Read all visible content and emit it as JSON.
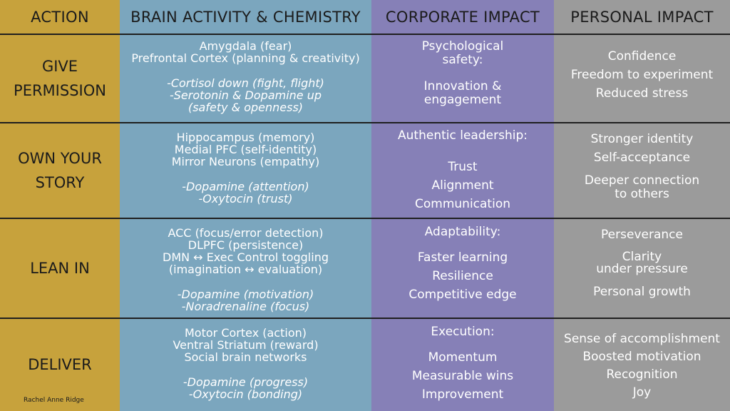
{
  "headers": {
    "action": "ACTION",
    "brain": "BRAIN ACTIVITY & CHEMISTRY",
    "corporate": "CORPORATE IMPACT",
    "personal": "PERSONAL IMPACT"
  },
  "rows": [
    {
      "action": [
        "GIVE",
        "PERMISSION"
      ],
      "brain": [
        "Amygdala (fear)",
        "Prefrontal Cortex (planning & creativity)"
      ],
      "chem": [
        "-Cortisol down (fight, flight)",
        "-Serotonin & Dopamine up",
        "(safety & openness)"
      ],
      "corporate": [
        "Psychological",
        "safety:",
        "",
        "Innovation &",
        "engagement"
      ],
      "personal": [
        "Confidence",
        "Freedom to experiment",
        "Reduced stress"
      ]
    },
    {
      "action": [
        "OWN YOUR",
        "STORY"
      ],
      "brain": [
        "Hippocampus (memory)",
        "Medial PFC (self-identity)",
        "Mirror Neurons (empathy)"
      ],
      "chem": [
        "-Dopamine (attention)",
        "-Oxytocin (trust)"
      ],
      "corporate": [
        "Authentic leadership:",
        "",
        "Trust",
        "Alignment",
        "Communication"
      ],
      "personal": [
        "Stronger identity",
        "Self-acceptance",
        "",
        "Deeper connection",
        "to others"
      ]
    },
    {
      "action": [
        "LEAN IN"
      ],
      "brain": [
        "ACC (focus/error detection)",
        "DLPFC (persistence)",
        "DMN ↔ Exec Control toggling",
        "(imagination ↔ evaluation)"
      ],
      "chem": [
        "-Dopamine (motivation)",
        "-Noradrenaline (focus)"
      ],
      "corporate": [
        "Adaptability:",
        "",
        "Faster learning",
        "Resilience",
        "Competitive edge"
      ],
      "personal": [
        "Perseverance",
        "",
        "Clarity",
        "under pressure",
        "",
        "Personal growth"
      ]
    },
    {
      "action": [
        "DELIVER"
      ],
      "brain": [
        "Motor Cortex (action)",
        "Ventral Striatum (reward)",
        "Social brain networks"
      ],
      "chem": [
        "-Dopamine (progress)",
        "-Oxytocin (bonding)"
      ],
      "corporate": [
        "Execution:",
        "",
        "Momentum",
        "Measurable wins",
        "Improvement"
      ],
      "personal": [
        "Sense of accomplishment",
        "Boosted motivation",
        "Recognition",
        "Joy"
      ]
    }
  ],
  "credit": "Rachel Anne Ridge"
}
